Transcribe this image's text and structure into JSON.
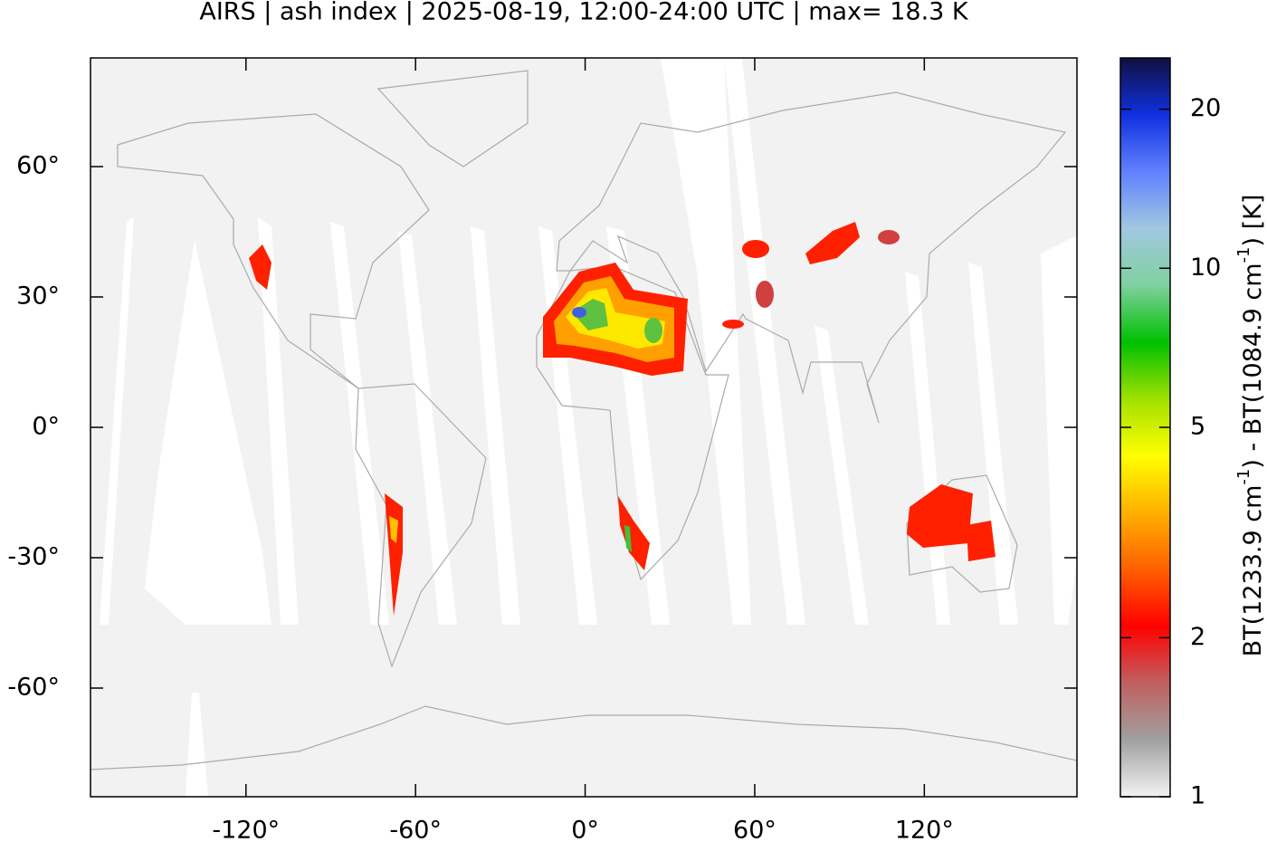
{
  "chart_data": {
    "type": "map",
    "title": "AIRS | ash index | 2025-08-19, 12:00-24:00 UTC | max= 18.3 K",
    "xlim": [
      -175,
      174
    ],
    "ylim": [
      -85,
      85
    ],
    "xticks": [
      {
        "value": -120,
        "label": "-120°"
      },
      {
        "value": -60,
        "label": "-60°"
      },
      {
        "value": 0,
        "label": "0°"
      },
      {
        "value": 60,
        "label": "60°"
      },
      {
        "value": 120,
        "label": "120°"
      }
    ],
    "yticks": [
      {
        "value": 60,
        "label": "60°"
      },
      {
        "value": 30,
        "label": "30°"
      },
      {
        "value": 0,
        "label": "0°"
      },
      {
        "value": -30,
        "label": "-30°"
      },
      {
        "value": -60,
        "label": "-60°"
      }
    ],
    "colorbar": {
      "clim": [
        1,
        25
      ],
      "log_scale": true,
      "ticks": [
        1,
        2,
        5,
        10,
        20
      ],
      "label": [
        "BT(1233.9 cm",
        "-1",
        ") - BT(1084.9 cm",
        "-1",
        ") [K]"
      ],
      "colormap": [
        "#f2f2f2",
        "#a0a0a0",
        "#c06060",
        "#ff0000",
        "#ff6000",
        "#ffb000",
        "#ffff00",
        "#a0e000",
        "#00c000",
        "#80d0a0",
        "#a0c8e0",
        "#6080ff",
        "#1030e0",
        "#101040"
      ]
    }
  }
}
